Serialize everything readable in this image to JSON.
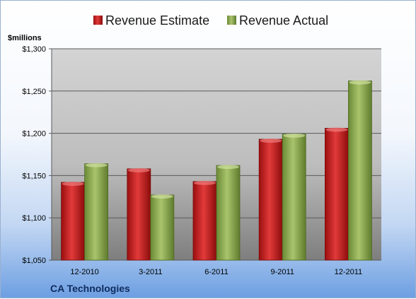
{
  "chart_data": {
    "type": "bar",
    "title": "",
    "xlabel": "",
    "ylabel": "$millions",
    "company": "CA Technologies",
    "categories": [
      "12-2010",
      "3-2011",
      "6-2011",
      "9-2011",
      "12-2011"
    ],
    "series": [
      {
        "name": "Revenue Estimate",
        "values": [
          1142,
          1158,
          1143,
          1193,
          1206
        ],
        "color": "#c41a1a"
      },
      {
        "name": "Revenue Actual",
        "values": [
          1164,
          1127,
          1162,
          1199,
          1262
        ],
        "color": "#8aa64e"
      }
    ],
    "ylim": [
      1050,
      1300
    ],
    "yticks": [
      1050,
      1100,
      1150,
      1200,
      1250,
      1300
    ],
    "ytick_labels": [
      "$1,050",
      "$1,100",
      "$1,150",
      "$1,200",
      "$1,250",
      "$1,300"
    ],
    "grid": true,
    "legend": "top"
  }
}
